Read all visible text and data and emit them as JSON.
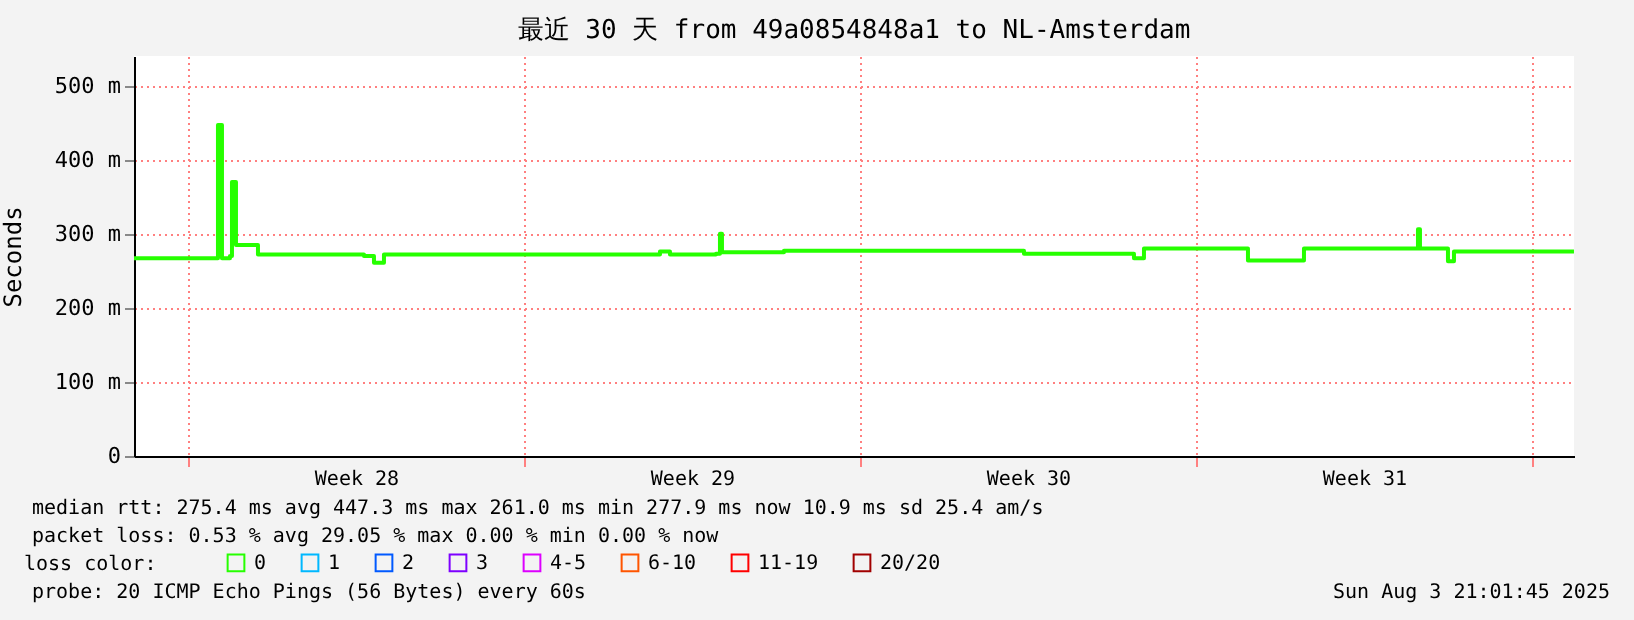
{
  "chart_data": {
    "type": "step",
    "title": "最近 30 天 from 49a0854848a1 to NL-Amsterdam",
    "ylabel": "Seconds",
    "legend_title": "loss color:",
    "legend": "bottom",
    "x": [
      "2025-07-04T21:01",
      "2025-07-06T13:00",
      "2025-07-06T15:00",
      "2025-07-06T17:00",
      "2025-07-06T21:00",
      "2025-07-06T22:00",
      "2025-07-07T00:00",
      "2025-07-07T10:00",
      "2025-07-07T11:00",
      "2025-07-08T20:00",
      "2025-07-09T16:00",
      "2025-07-09T21:00",
      "2025-07-10T02:00",
      "2025-07-15T17:00",
      "2025-07-15T20:00",
      "2025-07-16T01:00",
      "2025-07-17T00:00",
      "2025-07-17T02:00",
      "2025-07-17T03:00",
      "2025-07-18T10:00",
      "2025-07-21T03:00",
      "2025-07-23T10:00",
      "2025-07-24T06:00",
      "2025-07-25T17:00",
      "2025-07-25T22:00",
      "2025-07-28T00:00",
      "2025-07-28T02:00",
      "2025-07-29T01:00",
      "2025-07-29T06:00",
      "2025-07-30T22:00",
      "2025-07-31T15:00",
      "2025-07-31T16:00",
      "2025-08-01T06:00",
      "2025-08-01T09:00",
      "2025-08-03T21:00"
    ],
    "series": [
      {
        "name": "0",
        "color": "#26ff00",
        "values": [
          267,
          267,
          447,
          267,
          270,
          370,
          285,
          285,
          272,
          272,
          270,
          261,
          272,
          272,
          276,
          272,
          273,
          300,
          275,
          277,
          277,
          273,
          273,
          267,
          280,
          280,
          264,
          264,
          280,
          280,
          306,
          280,
          263,
          276,
          276
        ]
      },
      {
        "name": "1",
        "color": "#00b8ff",
        "values": [
          null,
          null,
          null,
          null,
          null,
          null,
          null,
          null,
          null,
          null,
          null,
          null,
          null,
          null,
          null,
          null,
          null,
          null,
          null,
          null,
          null,
          null,
          null,
          null,
          null,
          null,
          null,
          null,
          null,
          null,
          null,
          null,
          null,
          null,
          null
        ]
      },
      {
        "name": "2",
        "color": "#0059ff",
        "values": [
          null,
          null,
          null,
          null,
          null,
          null,
          null,
          null,
          null,
          null,
          null,
          null,
          null,
          null,
          null,
          null,
          null,
          null,
          null,
          null,
          null,
          null,
          null,
          null,
          null,
          null,
          null,
          null,
          null,
          null,
          null,
          null,
          null,
          null,
          null
        ]
      },
      {
        "name": "3",
        "color": "#7e00ff",
        "values": [
          null,
          null,
          null,
          null,
          null,
          null,
          null,
          null,
          null,
          null,
          null,
          null,
          null,
          null,
          null,
          null,
          null,
          null,
          null,
          null,
          null,
          null,
          null,
          null,
          null,
          null,
          null,
          null,
          null,
          null,
          null,
          null,
          null,
          null,
          null
        ]
      },
      {
        "name": "4-5",
        "color": "#dd00ff",
        "values": [
          null,
          null,
          null,
          null,
          null,
          null,
          null,
          null,
          null,
          null,
          null,
          null,
          null,
          null,
          null,
          null,
          null,
          null,
          null,
          null,
          null,
          null,
          null,
          null,
          null,
          null,
          null,
          null,
          null,
          null,
          null,
          null,
          null,
          null,
          null
        ]
      },
      {
        "name": "6-10",
        "color": "#ff5500",
        "values": [
          null,
          null,
          null,
          null,
          null,
          null,
          null,
          null,
          null,
          null,
          null,
          null,
          null,
          null,
          null,
          null,
          null,
          null,
          null,
          null,
          null,
          null,
          null,
          null,
          null,
          null,
          null,
          null,
          null,
          null,
          null,
          null,
          null,
          null,
          null
        ]
      },
      {
        "name": "11-19",
        "color": "#ff0000",
        "values": [
          null,
          null,
          null,
          null,
          null,
          null,
          null,
          null,
          null,
          null,
          null,
          null,
          null,
          null,
          null,
          null,
          null,
          null,
          null,
          null,
          null,
          null,
          null,
          null,
          null,
          null,
          null,
          null,
          null,
          null,
          null,
          null,
          null,
          null,
          null
        ]
      },
      {
        "name": "20/20",
        "color": "#a10000",
        "values": [
          null,
          null,
          null,
          null,
          null,
          null,
          null,
          null,
          null,
          null,
          null,
          null,
          null,
          null,
          null,
          null,
          null,
          null,
          null,
          null,
          null,
          null,
          null,
          null,
          null,
          null,
          null,
          null,
          null,
          null,
          null,
          null,
          null,
          null,
          null
        ]
      }
    ],
    "xlim": [
      "2025-07-04T21:01",
      "2025-08-03T21:01"
    ],
    "xticks": [
      {
        "value": "2025-07-06T00:00",
        "label": null
      },
      {
        "value": "2025-07-09T12:00",
        "label": "Week 28"
      },
      {
        "value": "2025-07-13T00:00",
        "label": null
      },
      {
        "value": "2025-07-16T12:00",
        "label": "Week 29"
      },
      {
        "value": "2025-07-20T00:00",
        "label": null
      },
      {
        "value": "2025-07-23T12:00",
        "label": "Week 30"
      },
      {
        "value": "2025-07-27T00:00",
        "label": null
      },
      {
        "value": "2025-07-30T12:00",
        "label": "Week 31"
      },
      {
        "value": "2025-08-03T00:00",
        "label": null
      }
    ],
    "ylim": [
      0,
      540
    ],
    "yticks": [
      0,
      {
        "value": 100,
        "label": "100 m"
      },
      {
        "value": 200,
        "label": "200 m"
      },
      {
        "value": 300,
        "label": "300 m"
      },
      {
        "value": 400,
        "label": "400 m"
      },
      {
        "value": 500,
        "label": "500 m"
      }
    ],
    "grid": true,
    "annotations": [
      "median rtt:  275.4 ms avg   447.3 ms max   261.0 ms min   277.9 ms now   10.9 ms sd   25.4    am/s",
      "packet loss: 0.53 % avg   29.05 % max   0.00 % min   0.00 % now",
      "probe:       20 ICMP Echo Pings (56 Bytes) every 60s",
      "Sun Aug  3 21:01:45 2025"
    ]
  }
}
